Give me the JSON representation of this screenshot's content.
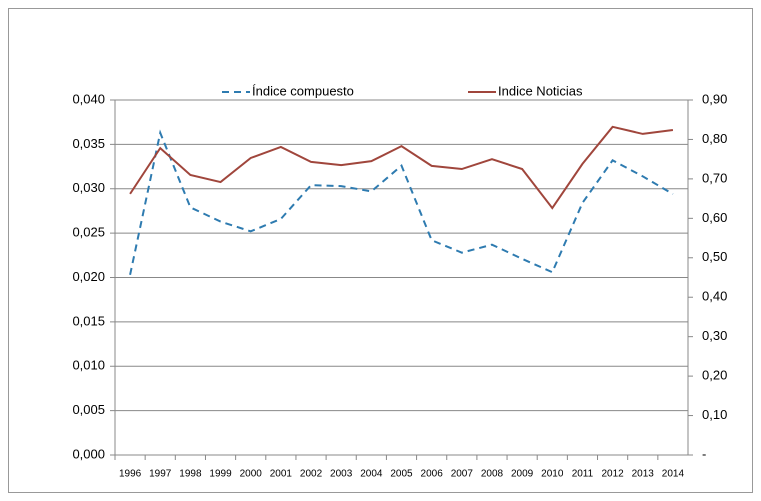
{
  "chart_data": {
    "type": "line",
    "categories": [
      "1996",
      "1997",
      "1998",
      "1999",
      "2000",
      "2001",
      "2002",
      "2003",
      "2004",
      "2005",
      "2006",
      "2007",
      "2008",
      "2009",
      "2010",
      "2011",
      "2012",
      "2013",
      "2014"
    ],
    "series": [
      {
        "name": "Índice compuesto",
        "color": "#2e7bb0",
        "dash": true,
        "values": [
          0.0203,
          0.0363,
          0.0279,
          0.0263,
          0.0252,
          0.0266,
          0.0304,
          0.0303,
          0.0297,
          0.0326,
          0.0242,
          0.0228,
          0.0237,
          0.0221,
          0.0206,
          0.0284,
          0.0332,
          0.0314,
          0.0294
        ]
      },
      {
        "name": "Indice Noticias",
        "color": "#a0463c",
        "axis": "y2",
        "values": [
          0.662,
          0.778,
          0.71,
          0.692,
          0.753,
          0.781,
          0.743,
          0.735,
          0.745,
          0.783,
          0.733,
          0.725,
          0.75,
          0.725,
          0.626,
          0.738,
          0.832,
          0.814,
          0.824
        ]
      }
    ],
    "ylim": [
      0,
      0.04
    ],
    "yticks": [
      {
        "value": 0,
        "label": "0,000"
      },
      {
        "value": 0.005,
        "label": "0,005"
      },
      {
        "value": 0.01,
        "label": "0,010"
      },
      {
        "value": 0.015,
        "label": "0,015"
      },
      {
        "value": 0.02,
        "label": "0,020"
      },
      {
        "value": 0.025,
        "label": "0,025"
      },
      {
        "value": 0.03,
        "label": "0,030"
      },
      {
        "value": 0.035,
        "label": "0,035"
      },
      {
        "value": 0.04,
        "label": "0,040"
      }
    ],
    "y2lim": [
      0,
      0.9
    ],
    "y2ticks": [
      {
        "value": 0,
        "label": "-"
      },
      {
        "value": 0.1,
        "label": "0,10"
      },
      {
        "value": 0.2,
        "label": "0,20"
      },
      {
        "value": 0.3,
        "label": "0,30"
      },
      {
        "value": 0.4,
        "label": "0,40"
      },
      {
        "value": 0.5,
        "label": "0,50"
      },
      {
        "value": 0.6,
        "label": "0,60"
      },
      {
        "value": 0.7,
        "label": "0,70"
      },
      {
        "value": 0.8,
        "label": "0,80"
      },
      {
        "value": 0.9,
        "label": "0,90"
      }
    ],
    "grid": true,
    "legend": "top"
  }
}
